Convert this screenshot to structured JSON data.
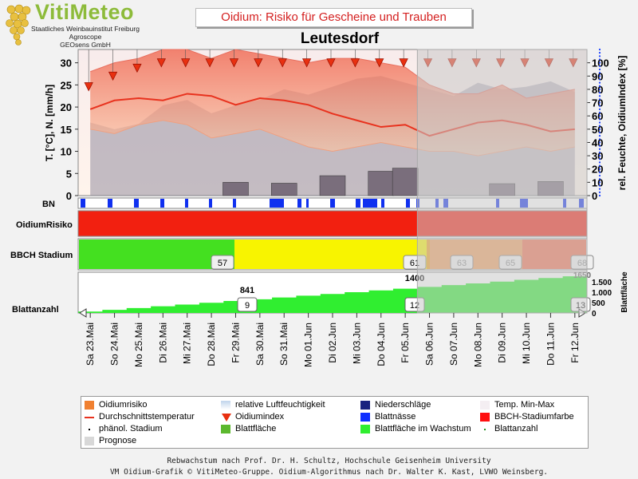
{
  "logo": {
    "title": "VitiMeteo",
    "line1": "Staatliches Weinbauinstitut Freiburg",
    "line2": "Agroscope",
    "line3": "GEOsens GmbH"
  },
  "title": "Oidium: Risiko für Gescheine und Trauben",
  "station": "Leutesdorf",
  "chart_data": {
    "type": "area",
    "x": [
      "Sa 23.Mai",
      "So 24.Mai",
      "Mo 25.Mai",
      "Di 26.Mai",
      "Mi 27.Mai",
      "Do 28.Mai",
      "Fr 29.Mai",
      "Sa 30.Mai",
      "So 31.Mai",
      "Mo 01.Jun",
      "Di 02.Jun",
      "Mi 03.Jun",
      "Do 04.Jun",
      "Fr 05.Jun",
      "Sa 06.Jun",
      "So 07.Jun",
      "Mo 08.Jun",
      "Di 09.Jun",
      "Mi 10.Jun",
      "Do 11.Jun",
      "Fr 12.Jun"
    ],
    "forecast_start": "Sa 06.Jun",
    "left_axis": {
      "label": "T. [°C], N. [mm/h]",
      "ylim": [
        0,
        33
      ],
      "ticks": [
        0,
        5,
        10,
        15,
        20,
        25,
        30
      ]
    },
    "right_axis": {
      "label": "rel. Feuchte, OidiumIndex [%]",
      "ylim": [
        0,
        110
      ],
      "ticks": [
        0,
        10,
        20,
        30,
        40,
        50,
        60,
        70,
        80,
        90,
        100
      ]
    },
    "series": [
      {
        "name": "Temp. Min-Max",
        "type": "band",
        "color": "#f08a70",
        "min": [
          15,
          14,
          16,
          17,
          16,
          13,
          14,
          15,
          13,
          11,
          10,
          11,
          12,
          11,
          10,
          10,
          9,
          10,
          11,
          10,
          11
        ],
        "max": [
          28,
          30,
          31,
          33,
          33,
          31,
          33,
          32,
          31,
          30,
          31,
          31,
          30,
          29,
          25,
          23,
          23,
          25,
          22,
          23,
          24
        ]
      },
      {
        "name": "relative Luftfeuchtigkeit",
        "type": "area",
        "color": "#a0a0a0",
        "values": [
          55,
          50,
          54,
          68,
          72,
          62,
          68,
          72,
          80,
          76,
          82,
          88,
          90,
          85,
          80,
          75,
          85,
          80,
          82,
          86,
          78
        ]
      },
      {
        "name": "Durchschnittstemperatur",
        "type": "line",
        "color": "#e8321e",
        "values": [
          19.5,
          21.5,
          22,
          21.5,
          23,
          22.5,
          20.5,
          22,
          21.5,
          20.5,
          18.5,
          17,
          15.5,
          16,
          13.5,
          15,
          16.5,
          17,
          16,
          14.5,
          15
        ]
      },
      {
        "name": "Niederschläge",
        "type": "bar",
        "color": "#7a6e7c",
        "values": [
          0,
          0,
          0,
          0,
          0,
          0,
          3,
          0,
          2.8,
          0,
          4.5,
          0,
          5.5,
          6.2,
          0,
          0,
          0,
          2.7,
          0,
          3.2,
          0
        ]
      },
      {
        "name": "Oidiumindex",
        "type": "marker",
        "color": "#e83010",
        "values": [
          82,
          90,
          96,
          100,
          100,
          100,
          100,
          100,
          100,
          100,
          100,
          100,
          100,
          100,
          100,
          100,
          100,
          100,
          100,
          100,
          100
        ]
      }
    ],
    "rows": {
      "bn_label": "BN",
      "risk_label": "OidiumRisiko",
      "bbch_label": "BBCH Stadium",
      "bbch_values": [
        "57",
        "61",
        "63",
        "65",
        "68"
      ],
      "blatt_label": "Blattanzahl",
      "blatt_values": [
        "9",
        "12",
        "13"
      ],
      "area_values": [
        "841",
        "1400",
        "1650"
      ],
      "area_ticks": [
        "1.500",
        "1.000",
        "500",
        "0"
      ],
      "area_axis": "Blattfläche"
    },
    "legend_position": "bottom"
  },
  "legend": [
    {
      "label": "Oidiumrisiko",
      "color": "#f08030",
      "kind": "box"
    },
    {
      "label": "relative Luftfeuchtigkeit",
      "color": "#c0d4ec",
      "kind": "grad"
    },
    {
      "label": "Niederschläge",
      "color": "#1a237e",
      "kind": "box"
    },
    {
      "label": "Temp. Min-Max",
      "color": "#f4eef2",
      "kind": "box"
    },
    {
      "label": "Durchschnittstemperatur",
      "color": "#e8321e",
      "kind": "line"
    },
    {
      "label": "Oidiumindex",
      "color": "#e83010",
      "kind": "tri"
    },
    {
      "label": "Blattnässe",
      "color": "#1030ff",
      "kind": "box"
    },
    {
      "label": "BBCH-Stadiumfarbe",
      "color": "#ff1010",
      "kind": "box"
    },
    {
      "label": "phänol. Stadium",
      "color": "#000",
      "kind": "dot"
    },
    {
      "label": "Blattfläche",
      "color": "#5cb82e",
      "kind": "box"
    },
    {
      "label": "Blattfläche im Wachstum",
      "color": "#30ee30",
      "kind": "box"
    },
    {
      "label": "Blattanzahl",
      "color": "#209020",
      "kind": "dot"
    },
    {
      "label": "Prognose",
      "color": "#d8d8d8",
      "kind": "box"
    }
  ],
  "footer1": "Rebwachstum nach Prof. Dr. H. Schultz, Hochschule Geisenheim University",
  "footer2": "VM Oidium-Grafik © VitiMeteo-Gruppe. Oidium-Algorithmus nach Dr. Walter K. Kast, LVWO Weinsberg."
}
